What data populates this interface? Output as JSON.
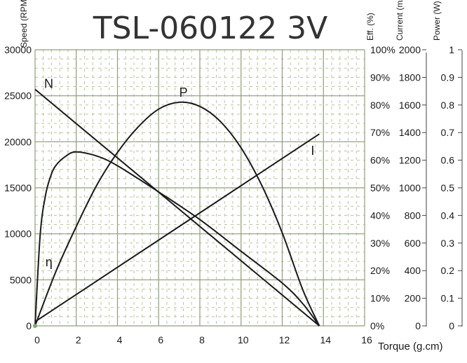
{
  "chart_data": {
    "type": "line",
    "title": "TSL-060122 3V",
    "xlabel": "Torque (g.cm)",
    "xlim": [
      0,
      16
    ],
    "x_ticks": [
      "0",
      "2",
      "4",
      "6",
      "8",
      "10",
      "12",
      "14",
      "16"
    ],
    "axes": {
      "speed": {
        "label": "Speed (RPM)",
        "range": [
          0,
          30000
        ],
        "ticks": [
          "0",
          "5000",
          "10000",
          "15000",
          "20000",
          "25000",
          "30000"
        ]
      },
      "eff": {
        "label": "Eff. (%)",
        "range": [
          0,
          100
        ],
        "ticks": [
          "0%",
          "10%",
          "20%",
          "30%",
          "40%",
          "50%",
          "60%",
          "70%",
          "80%",
          "90%",
          "100%"
        ]
      },
      "current": {
        "label": "Current (mA)",
        "range": [
          0,
          2000
        ],
        "ticks": [
          "0",
          "200",
          "400",
          "600",
          "800",
          "1000",
          "1200",
          "1400",
          "1600",
          "1800",
          "2000"
        ]
      },
      "power": {
        "label": "Power (W)",
        "range": [
          0,
          1
        ],
        "ticks": [
          "0",
          "0.1",
          "0.2",
          "0.3",
          "0.4",
          "0.5",
          "0.6",
          "0.7",
          "0.8",
          "0.9",
          "1"
        ]
      }
    },
    "series": [
      {
        "name": "N",
        "axis": "speed",
        "x": [
          0,
          13.8
        ],
        "y": [
          25700,
          0
        ]
      },
      {
        "name": "I",
        "axis": "current",
        "x": [
          0,
          13.8
        ],
        "y": [
          30,
          1390
        ]
      },
      {
        "name": "P",
        "axis": "power",
        "x": [
          0,
          1,
          2,
          3,
          4,
          5,
          6,
          7,
          8,
          9,
          10,
          11,
          12,
          13,
          13.8
        ],
        "y": [
          0,
          0.195,
          0.36,
          0.51,
          0.628,
          0.72,
          0.785,
          0.81,
          0.795,
          0.74,
          0.645,
          0.51,
          0.337,
          0.13,
          0
        ]
      },
      {
        "name": "η",
        "axis": "eff",
        "x": [
          0,
          0.25,
          0.5,
          0.75,
          1,
          1.5,
          2,
          3,
          4,
          6,
          8,
          10,
          12,
          13,
          13.8
        ],
        "y": [
          0,
          33,
          47,
          54,
          58,
          61.5,
          63,
          61.5,
          58,
          48.5,
          38.5,
          27,
          15.5,
          8,
          0
        ]
      }
    ],
    "series_labels": [
      "N",
      "P",
      "I",
      "η"
    ],
    "grid": true,
    "grid_color": "#b8c89a",
    "line_color": "#1a1a1a"
  }
}
